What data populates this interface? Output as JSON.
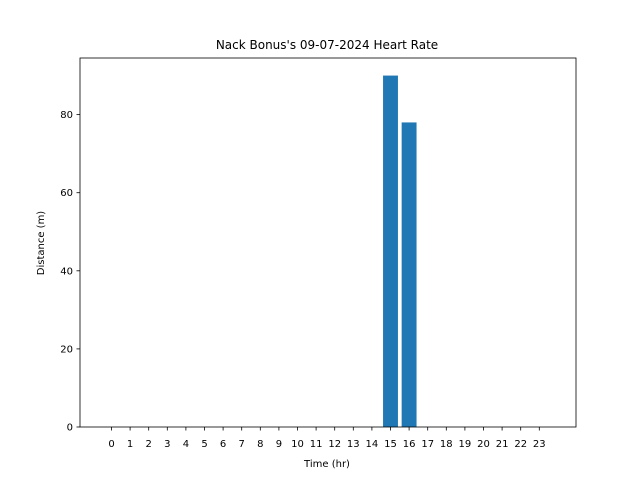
{
  "chart_data": {
    "type": "bar",
    "title": "Nack Bonus's 09-07-2024 Heart Rate",
    "xlabel": "Time (hr)",
    "ylabel": "Distance (m)",
    "categories": [
      "0",
      "1",
      "2",
      "3",
      "4",
      "5",
      "6",
      "7",
      "8",
      "9",
      "10",
      "11",
      "12",
      "13",
      "14",
      "15",
      "16",
      "17",
      "18",
      "19",
      "20",
      "21",
      "22",
      "23"
    ],
    "values": [
      0,
      0,
      0,
      0,
      0,
      0,
      0,
      0,
      0,
      0,
      0,
      0,
      0,
      0,
      0,
      90,
      78,
      0,
      0,
      0,
      0,
      0,
      0,
      0
    ],
    "yticks": [
      "0",
      "20",
      "40",
      "60",
      "80"
    ],
    "ylim": [
      0,
      94.5
    ],
    "grid": false,
    "bar_color": "#1f77b4"
  }
}
